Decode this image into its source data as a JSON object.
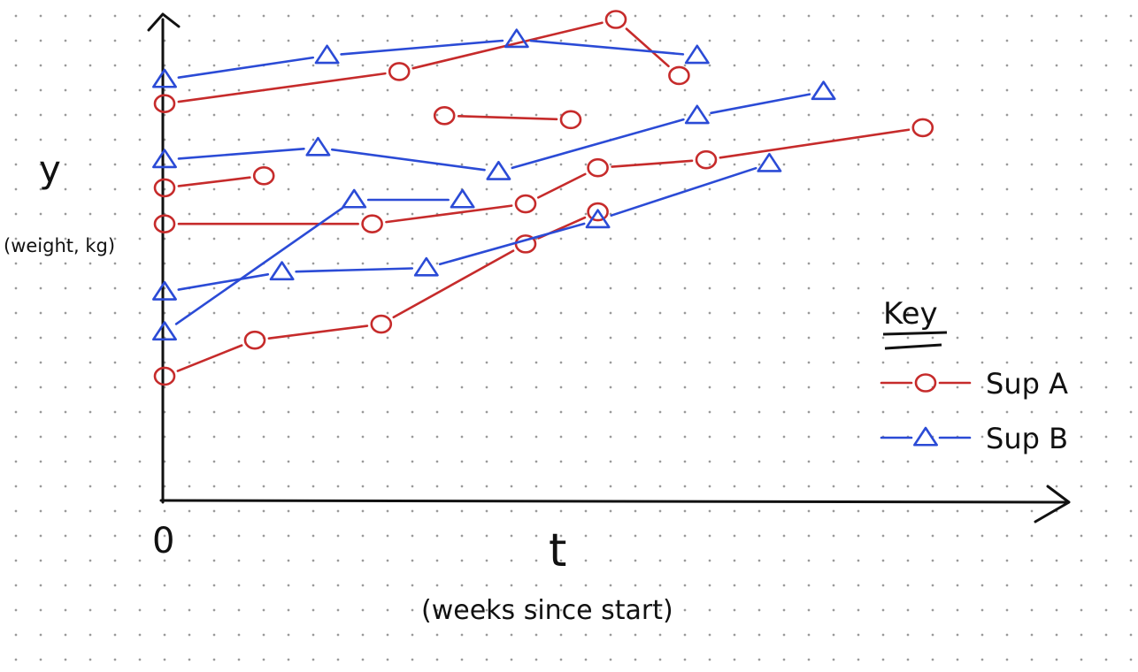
{
  "chart_data": {
    "type": "line",
    "ylabel": "y",
    "ylabel_unit": "(weight, kg)",
    "xlabel": "t",
    "xlabel_unit": "(weeks since start)",
    "origin_label": "0",
    "legend": {
      "title": "Key",
      "placement": "right",
      "entries": [
        "Sup A",
        "Sup B"
      ]
    },
    "grid": "dotted",
    "xlim": [
      0,
      10
    ],
    "ylim": [
      0,
      12
    ],
    "series": [
      {
        "name": "Sup A",
        "color": "#c62b2b",
        "marker": "circle",
        "lines": [
          [
            [
              0,
              3.1
            ],
            [
              1.0,
              4.0
            ],
            [
              2.4,
              4.4
            ],
            [
              4.0,
              6.4
            ],
            [
              4.8,
              7.2
            ]
          ],
          [
            [
              0,
              6.9
            ],
            [
              2.3,
              6.9
            ],
            [
              4.0,
              7.4
            ],
            [
              4.8,
              8.3
            ],
            [
              6.0,
              8.5
            ],
            [
              8.4,
              9.3
            ]
          ],
          [
            [
              0,
              7.8
            ],
            [
              1.1,
              8.1
            ]
          ],
          [
            [
              0,
              9.9
            ],
            [
              2.6,
              10.7
            ],
            [
              5.0,
              12.0
            ],
            [
              5.7,
              10.6
            ]
          ],
          [
            [
              3.1,
              9.6
            ],
            [
              4.5,
              9.5
            ]
          ]
        ]
      },
      {
        "name": "Sup B",
        "color": "#2b4bd6",
        "marker": "triangle",
        "lines": [
          [
            [
              0,
              4.2
            ],
            [
              2.1,
              7.5
            ],
            [
              3.3,
              7.5
            ]
          ],
          [
            [
              0,
              5.2
            ],
            [
              1.3,
              5.7
            ],
            [
              2.9,
              5.8
            ],
            [
              4.8,
              7.0
            ],
            [
              6.7,
              8.4
            ]
          ],
          [
            [
              0,
              8.5
            ],
            [
              1.7,
              8.8
            ],
            [
              3.7,
              8.2
            ],
            [
              5.9,
              9.6
            ],
            [
              7.3,
              10.2
            ]
          ],
          [
            [
              0,
              10.5
            ],
            [
              1.8,
              11.1
            ],
            [
              3.9,
              11.5
            ],
            [
              5.9,
              11.1
            ]
          ]
        ]
      }
    ]
  }
}
